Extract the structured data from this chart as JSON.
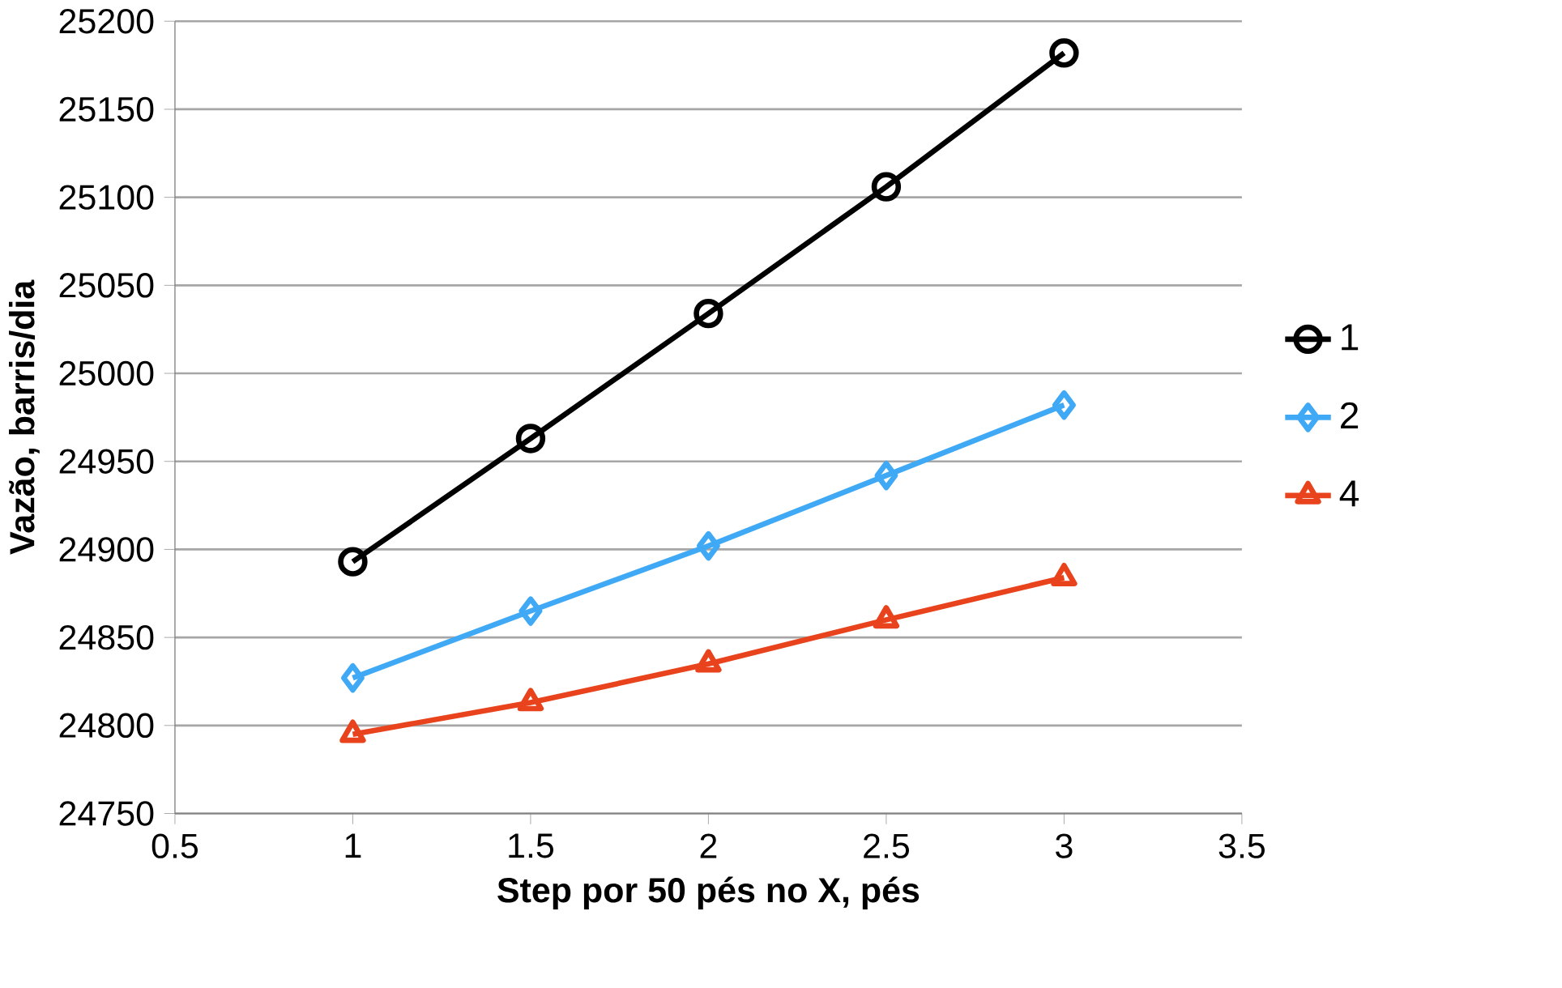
{
  "chart_data": {
    "type": "line",
    "xlabel": "Step por 50 pés no X, pés",
    "ylabel": "Vazão, barris/dia",
    "x": [
      1,
      1.5,
      2,
      2.5,
      3
    ],
    "series": [
      {
        "name": "1",
        "color": "#000000",
        "marker": "circle",
        "values": [
          24893,
          24963,
          25034,
          25106,
          25182
        ]
      },
      {
        "name": "2",
        "color": "#3fa9f5",
        "marker": "diamond",
        "values": [
          24827,
          24865,
          24902,
          24942,
          24982
        ]
      },
      {
        "name": "4",
        "color": "#e8431c",
        "marker": "triangle",
        "values": [
          24795,
          24813,
          24835,
          24860,
          24884
        ]
      }
    ],
    "xlim": [
      0.5,
      3.5
    ],
    "xticks": [
      0.5,
      1,
      1.5,
      2,
      2.5,
      3,
      3.5
    ],
    "ylim": [
      24750,
      25200
    ],
    "yticks": [
      24750,
      24800,
      24850,
      24900,
      24950,
      25000,
      25050,
      25100,
      25150,
      25200
    ],
    "grid": "y",
    "legend": "right",
    "line_style": "solid"
  }
}
